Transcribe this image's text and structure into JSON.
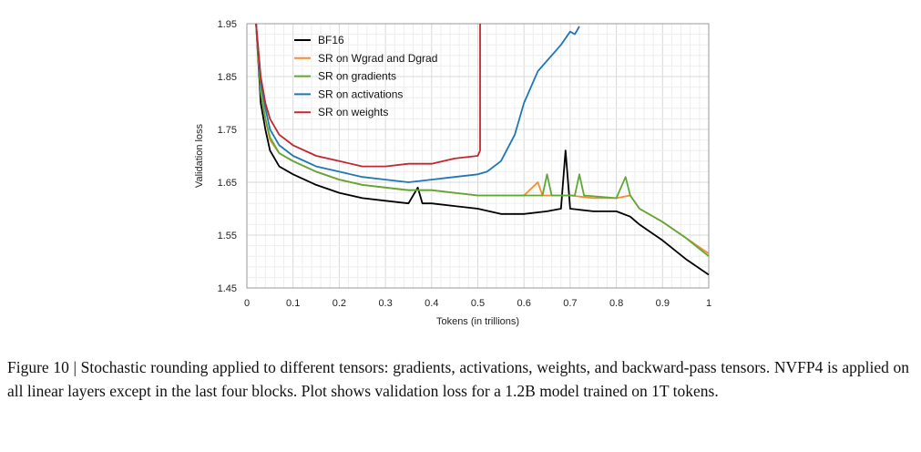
{
  "chart_data": {
    "type": "line",
    "xlabel": "Tokens (in trillions)",
    "ylabel": "Validation loss",
    "xlim": [
      0,
      1
    ],
    "ylim": [
      1.45,
      1.95
    ],
    "xticks": [
      "0",
      "0.1",
      "0.2",
      "0.3",
      "0.4",
      "0.5",
      "0.6",
      "0.7",
      "0.8",
      "0.9",
      "1"
    ],
    "yticks": [
      "1.45",
      "1.55",
      "1.65",
      "1.75",
      "1.85",
      "1.95"
    ],
    "grid": true,
    "legend_position": "top-left",
    "series": [
      {
        "name": "BF16",
        "color": "#000000",
        "x": [
          0.02,
          0.03,
          0.04,
          0.05,
          0.07,
          0.1,
          0.15,
          0.2,
          0.25,
          0.3,
          0.35,
          0.37,
          0.38,
          0.4,
          0.45,
          0.5,
          0.55,
          0.6,
          0.65,
          0.68,
          0.69,
          0.7,
          0.75,
          0.8,
          0.83,
          0.85,
          0.9,
          0.95,
          1.0
        ],
        "y": [
          1.95,
          1.8,
          1.75,
          1.71,
          1.68,
          1.665,
          1.645,
          1.63,
          1.62,
          1.615,
          1.61,
          1.64,
          1.61,
          1.61,
          1.605,
          1.6,
          1.59,
          1.59,
          1.595,
          1.6,
          1.71,
          1.6,
          1.595,
          1.595,
          1.585,
          1.57,
          1.54,
          1.505,
          1.475
        ]
      },
      {
        "name": "SR on Wgrad and Dgrad",
        "color": "#f28e2b",
        "x": [
          0.02,
          0.03,
          0.04,
          0.05,
          0.07,
          0.1,
          0.15,
          0.2,
          0.25,
          0.3,
          0.35,
          0.4,
          0.45,
          0.5,
          0.55,
          0.6,
          0.63,
          0.64,
          0.66,
          0.7,
          0.75,
          0.8,
          0.83,
          0.85,
          0.9,
          0.95,
          1.0
        ],
        "y": [
          1.95,
          1.82,
          1.77,
          1.73,
          1.705,
          1.69,
          1.67,
          1.655,
          1.645,
          1.64,
          1.635,
          1.635,
          1.63,
          1.625,
          1.625,
          1.625,
          1.65,
          1.625,
          1.625,
          1.625,
          1.62,
          1.62,
          1.625,
          1.6,
          1.575,
          1.545,
          1.515
        ]
      },
      {
        "name": "SR on gradients",
        "color": "#5fa836",
        "x": [
          0.02,
          0.03,
          0.04,
          0.05,
          0.07,
          0.1,
          0.15,
          0.2,
          0.25,
          0.3,
          0.35,
          0.4,
          0.45,
          0.5,
          0.55,
          0.6,
          0.64,
          0.65,
          0.66,
          0.71,
          0.72,
          0.73,
          0.8,
          0.82,
          0.83,
          0.85,
          0.9,
          0.95,
          1.0
        ],
        "y": [
          1.95,
          1.82,
          1.77,
          1.735,
          1.705,
          1.69,
          1.67,
          1.655,
          1.645,
          1.64,
          1.635,
          1.635,
          1.63,
          1.625,
          1.625,
          1.625,
          1.625,
          1.665,
          1.625,
          1.625,
          1.665,
          1.625,
          1.62,
          1.66,
          1.625,
          1.6,
          1.575,
          1.545,
          1.51
        ]
      },
      {
        "name": "SR on activations",
        "color": "#1f77b4",
        "x": [
          0.02,
          0.03,
          0.04,
          0.05,
          0.07,
          0.1,
          0.15,
          0.2,
          0.25,
          0.3,
          0.35,
          0.4,
          0.45,
          0.5,
          0.52,
          0.55,
          0.58,
          0.6,
          0.63,
          0.65,
          0.68,
          0.7,
          0.71,
          0.72
        ],
        "y": [
          1.95,
          1.84,
          1.79,
          1.75,
          1.72,
          1.7,
          1.68,
          1.67,
          1.66,
          1.655,
          1.65,
          1.655,
          1.66,
          1.665,
          1.67,
          1.69,
          1.74,
          1.8,
          1.86,
          1.88,
          1.91,
          1.935,
          1.93,
          1.945
        ]
      },
      {
        "name": "SR on weights",
        "color": "#c0282d",
        "x": [
          0.02,
          0.03,
          0.04,
          0.05,
          0.07,
          0.1,
          0.15,
          0.2,
          0.25,
          0.3,
          0.35,
          0.4,
          0.45,
          0.5,
          0.505,
          0.505
        ],
        "y": [
          1.95,
          1.85,
          1.8,
          1.77,
          1.74,
          1.72,
          1.7,
          1.69,
          1.68,
          1.68,
          1.685,
          1.685,
          1.695,
          1.7,
          1.71,
          1.95
        ]
      }
    ]
  },
  "caption": "Figure 10 | Stochastic rounding applied to different tensors: gradients, activations, weights, and backward-pass tensors. NVFP4 is applied on all linear layers except in the last four blocks. Plot shows validation loss for a 1.2B model trained on 1T tokens."
}
